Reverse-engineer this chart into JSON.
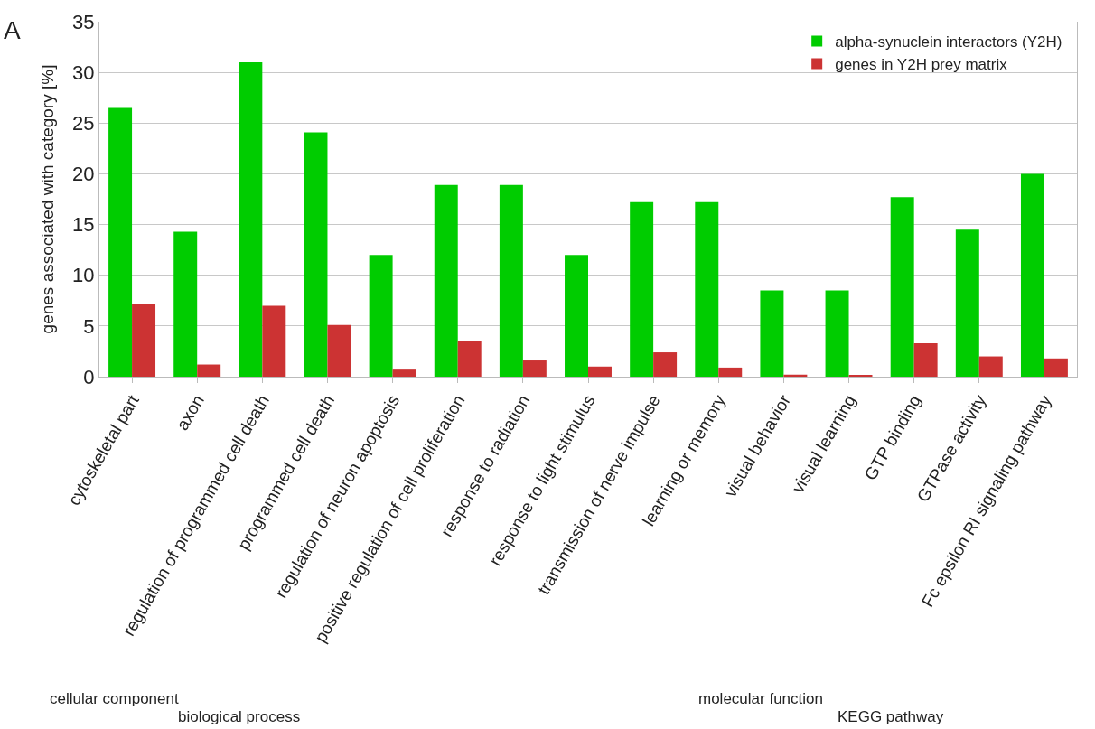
{
  "chart_data": {
    "type": "bar",
    "ylabel": "genes associated with category [%]",
    "categories": [
      "cytoskeletal part",
      "axon",
      "regulation of programmed cell death",
      "programmed cell death",
      "regulation of neuron apoptosis",
      "positive regulation of cell proliferation",
      "response to radiation",
      "response to light stimulus",
      "transmission of nerve impulse",
      "learning or memory",
      "visual behavior",
      "visual learning",
      "GTP binding",
      "GTPase activity",
      "Fc epsilon RI signaling pathway"
    ],
    "series": [
      {
        "name": "alpha-synuclein interactors (Y2H)",
        "color": "#00cc00",
        "values": [
          26.5,
          14.3,
          31.0,
          24.1,
          12.0,
          18.9,
          18.9,
          12.0,
          17.2,
          17.2,
          8.5,
          8.5,
          17.7,
          14.5,
          20.0
        ]
      },
      {
        "name": "genes in Y2H prey matrix",
        "color": "#cc3333",
        "values": [
          7.2,
          1.2,
          7.0,
          5.1,
          0.7,
          3.5,
          1.6,
          1.0,
          2.4,
          0.9,
          0.2,
          0.1,
          3.3,
          2.0,
          1.8
        ]
      }
    ],
    "ylim": [
      0,
      35
    ],
    "yticks": [
      0,
      5,
      10,
      15,
      20,
      25,
      30,
      35
    ],
    "grid": "y",
    "legend": "top right",
    "annotations": [
      "A",
      "cellular component",
      "biological process",
      "molecular function",
      "KEGG pathway"
    ]
  }
}
